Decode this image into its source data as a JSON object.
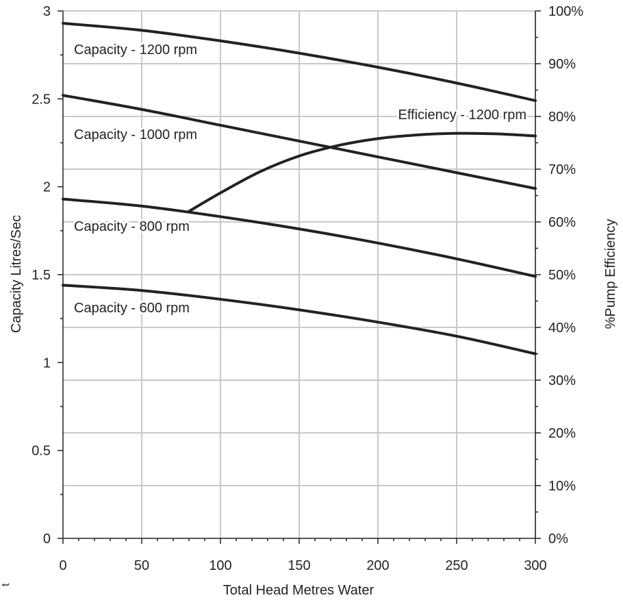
{
  "chart_data": {
    "type": "line",
    "xlabel": "Total Head Metres Water",
    "ylabel": "Capacity Litres/Sec",
    "y2label": "%Pump Efficiency",
    "xlim": [
      0,
      300
    ],
    "ylim": [
      0,
      3
    ],
    "y2lim": [
      0,
      100
    ],
    "x_ticks": [
      "0",
      "50",
      "100",
      "150",
      "200",
      "250",
      "300"
    ],
    "y_ticks": [
      "0",
      "0.5",
      "1",
      "1.5",
      "2",
      "2.5",
      "3"
    ],
    "y2_ticks": [
      "0%",
      "10%",
      "20%",
      "30%",
      "40%",
      "50%",
      "60%",
      "70%",
      "80%",
      "90%",
      "100%"
    ],
    "grid": true,
    "legend": "inline",
    "series": [
      {
        "name": "Capacity - 1200 rpm",
        "axis": "left",
        "x": [
          0,
          50,
          100,
          150,
          200,
          250,
          300
        ],
        "y": [
          2.93,
          2.89,
          2.83,
          2.76,
          2.68,
          2.59,
          2.49
        ]
      },
      {
        "name": "Capacity - 1000 rpm",
        "axis": "left",
        "x": [
          0,
          50,
          100,
          150,
          200,
          250,
          300
        ],
        "y": [
          2.52,
          2.44,
          2.35,
          2.26,
          2.17,
          2.08,
          1.99
        ]
      },
      {
        "name": "Capacity - 800 rpm",
        "axis": "left",
        "x": [
          0,
          50,
          100,
          150,
          200,
          250,
          300
        ],
        "y": [
          1.93,
          1.89,
          1.83,
          1.76,
          1.68,
          1.59,
          1.49
        ]
      },
      {
        "name": "Capacity - 600 rpm",
        "axis": "left",
        "x": [
          0,
          50,
          100,
          150,
          200,
          250,
          300
        ],
        "y": [
          1.44,
          1.41,
          1.36,
          1.3,
          1.23,
          1.15,
          1.05
        ]
      },
      {
        "name": "Efficiency - 1200 rpm",
        "axis": "right",
        "x": [
          80,
          100,
          125,
          150,
          175,
          200,
          225,
          250,
          275,
          300
        ],
        "y": [
          62,
          65.5,
          69.5,
          72.5,
          74.5,
          75.8,
          76.5,
          76.8,
          76.7,
          76.3
        ]
      }
    ]
  },
  "stray_mark": "t"
}
